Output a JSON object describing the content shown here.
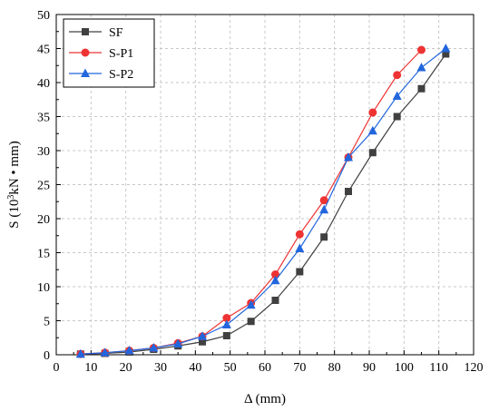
{
  "chart_data": {
    "type": "line",
    "xlabel": "Δ (mm)",
    "ylabel_main": "S (10",
    "ylabel_sup": "3",
    "ylabel_rest": "kN • mm)",
    "xlim": [
      0,
      120
    ],
    "ylim": [
      0,
      50
    ],
    "xticks": [
      0,
      10,
      20,
      30,
      40,
      50,
      60,
      70,
      80,
      90,
      100,
      110,
      120
    ],
    "yticks": [
      0,
      5,
      10,
      15,
      20,
      25,
      30,
      35,
      40,
      45,
      50
    ],
    "grid": true,
    "legend_position": "top-left",
    "series": [
      {
        "name": "SF",
        "color": "#404040",
        "marker": "square",
        "x": [
          7,
          14,
          21,
          28,
          35,
          42,
          49,
          56,
          63,
          70,
          77,
          84,
          91,
          98,
          105,
          112
        ],
        "y": [
          0.1,
          0.2,
          0.4,
          0.8,
          1.3,
          1.9,
          2.8,
          4.9,
          8.0,
          12.2,
          17.3,
          24.0,
          29.7,
          35.0,
          39.1,
          44.2
        ]
      },
      {
        "name": "S-P1",
        "color": "#ee3333",
        "marker": "circle",
        "x": [
          7,
          14,
          21,
          28,
          35,
          42,
          49,
          56,
          63,
          70,
          77,
          84,
          91,
          98,
          105
        ],
        "y": [
          0.1,
          0.3,
          0.6,
          1.0,
          1.7,
          2.7,
          5.4,
          7.6,
          11.8,
          17.7,
          22.7,
          29.0,
          35.6,
          41.1,
          44.8
        ]
      },
      {
        "name": "S-P2",
        "color": "#2266dd",
        "marker": "triangle",
        "x": [
          7,
          14,
          21,
          28,
          35,
          42,
          49,
          56,
          63,
          70,
          77,
          84,
          91,
          98,
          105,
          112
        ],
        "y": [
          0.1,
          0.3,
          0.6,
          1.0,
          1.6,
          2.7,
          4.4,
          7.3,
          10.9,
          15.6,
          21.3,
          29.0,
          32.9,
          38.0,
          42.2,
          45.0
        ]
      }
    ]
  }
}
